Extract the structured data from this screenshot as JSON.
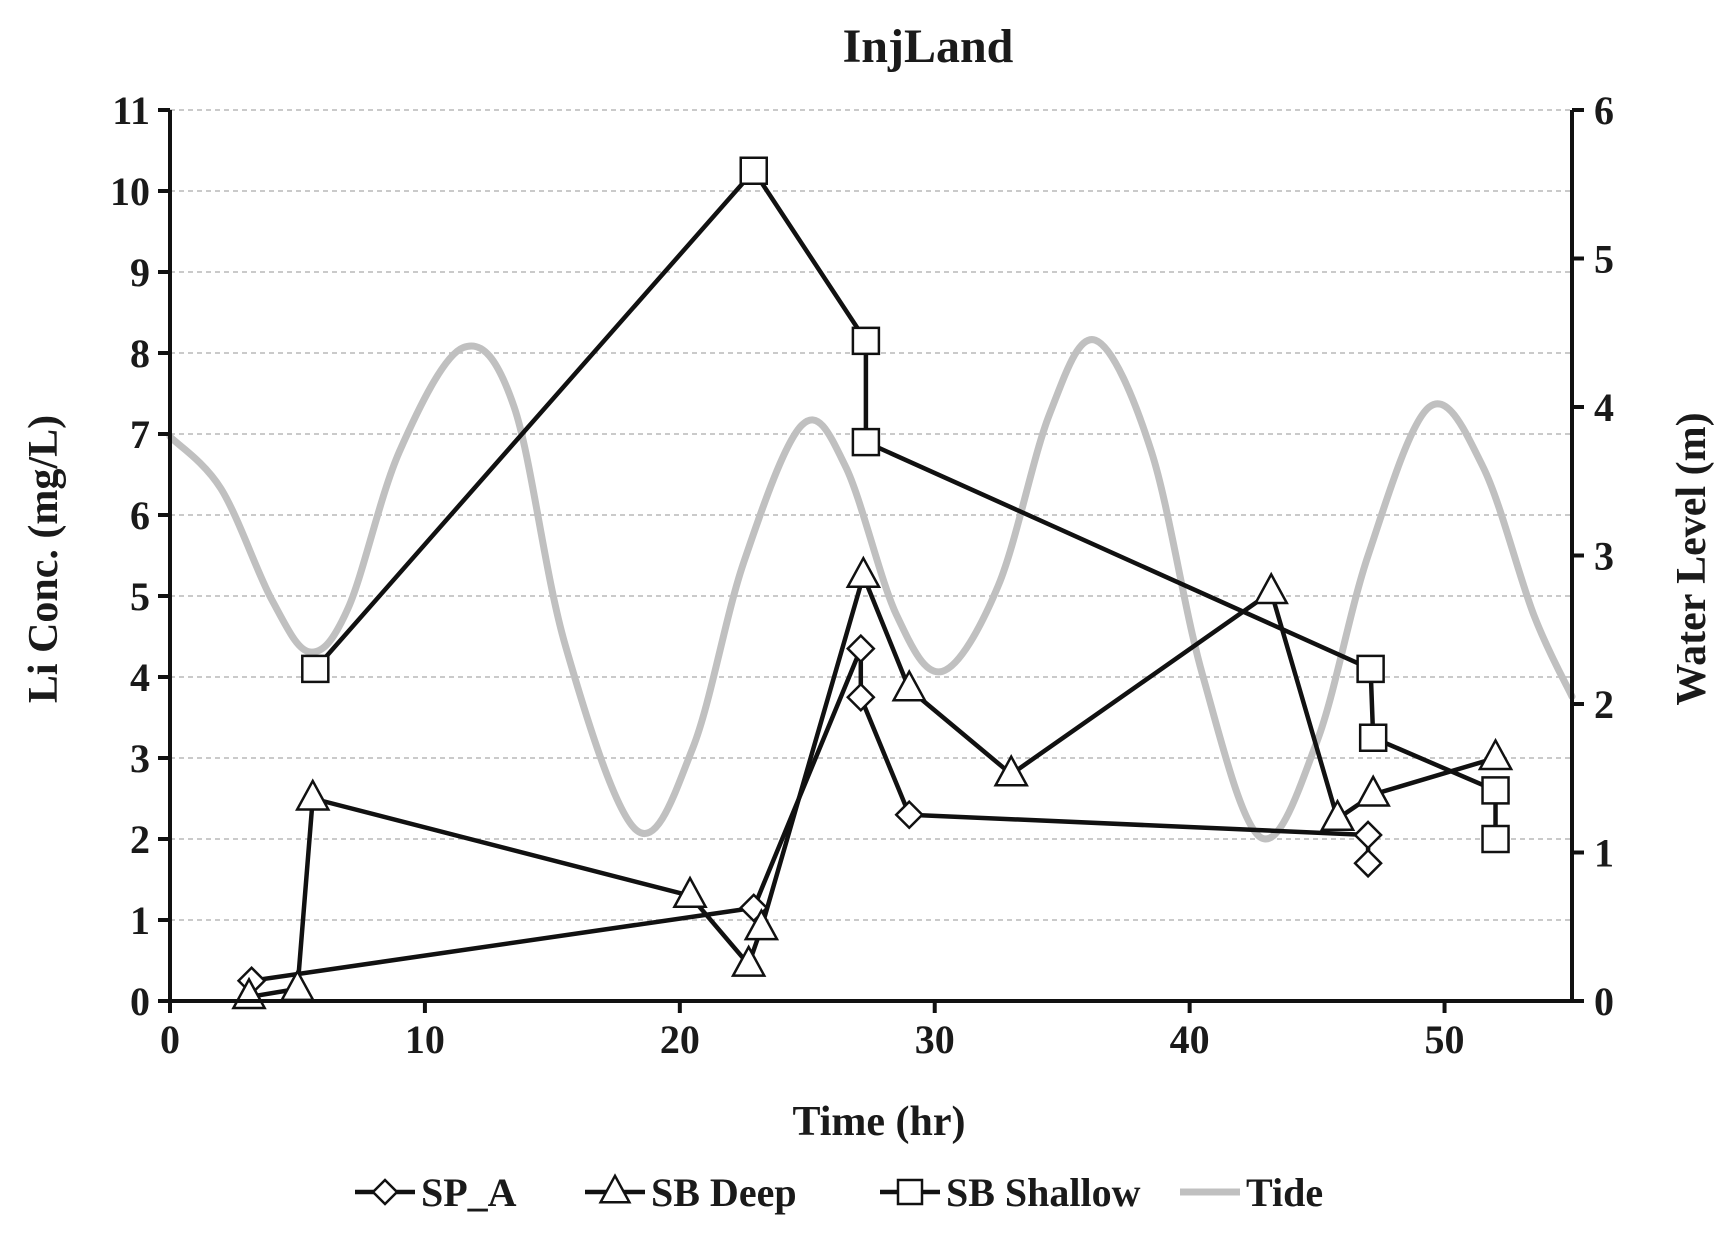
{
  "chart_data": {
    "type": "line",
    "title": "InjLand",
    "xlabel": "Time (hr)",
    "ylabel": "Li Conc. (mg/L)",
    "y2label": "Water Level (m)",
    "xlim": [
      0,
      55
    ],
    "ylim": [
      0,
      11
    ],
    "y2lim": [
      0,
      6
    ],
    "xticks": [
      0,
      10,
      20,
      30,
      40,
      50
    ],
    "yticks": [
      0,
      1,
      2,
      3,
      4,
      5,
      6,
      7,
      8,
      9,
      10,
      11
    ],
    "y2ticks": [
      0,
      1,
      2,
      3,
      4,
      5,
      6
    ],
    "grid": "horizontal dashed",
    "legend_position": "bottom",
    "series": [
      {
        "name": "SP_A",
        "marker": "diamond",
        "color": "#111111",
        "axis": "left",
        "x": [
          3.2,
          22.9,
          27.1,
          27.1,
          29.0,
          47.0,
          47.0
        ],
        "y": [
          0.25,
          1.15,
          4.35,
          3.75,
          2.3,
          2.05,
          1.7
        ]
      },
      {
        "name": "SB Deep",
        "marker": "triangle",
        "color": "#111111",
        "axis": "left",
        "x": [
          3.1,
          5.0,
          5.6,
          20.4,
          22.7,
          23.2,
          27.2,
          29.0,
          33.0,
          43.2,
          45.8,
          47.2,
          52.0
        ],
        "y": [
          0.05,
          0.15,
          2.5,
          1.3,
          0.45,
          0.9,
          5.25,
          3.85,
          2.8,
          5.05,
          2.25,
          2.55,
          3.0
        ]
      },
      {
        "name": "SB Shallow",
        "marker": "square",
        "color": "#111111",
        "axis": "left",
        "x": [
          5.7,
          22.9,
          27.3,
          27.3,
          47.1,
          47.2,
          52.0,
          52.0
        ],
        "y": [
          4.1,
          10.25,
          8.15,
          6.9,
          4.1,
          3.25,
          2.6,
          2.0
        ]
      },
      {
        "name": "Tide",
        "marker": "none",
        "color": "#c0c0c0",
        "axis": "right",
        "x": [
          0,
          2,
          4,
          5.5,
          7,
          9,
          11.5,
          13.5,
          15.5,
          18.3,
          20.5,
          22.5,
          24.8,
          26.5,
          28.5,
          30.3,
          32.5,
          34.5,
          36.3,
          38.5,
          40.5,
          42.8,
          45,
          47,
          49.4,
          51.5,
          53.5,
          55
        ],
        "y": [
          3.8,
          3.45,
          2.7,
          2.35,
          2.65,
          3.7,
          4.4,
          4.0,
          2.4,
          1.15,
          1.7,
          2.95,
          3.88,
          3.6,
          2.6,
          2.22,
          2.8,
          3.95,
          4.45,
          3.7,
          2.2,
          1.1,
          1.75,
          3.0,
          4.0,
          3.6,
          2.6,
          2.05
        ]
      }
    ]
  }
}
